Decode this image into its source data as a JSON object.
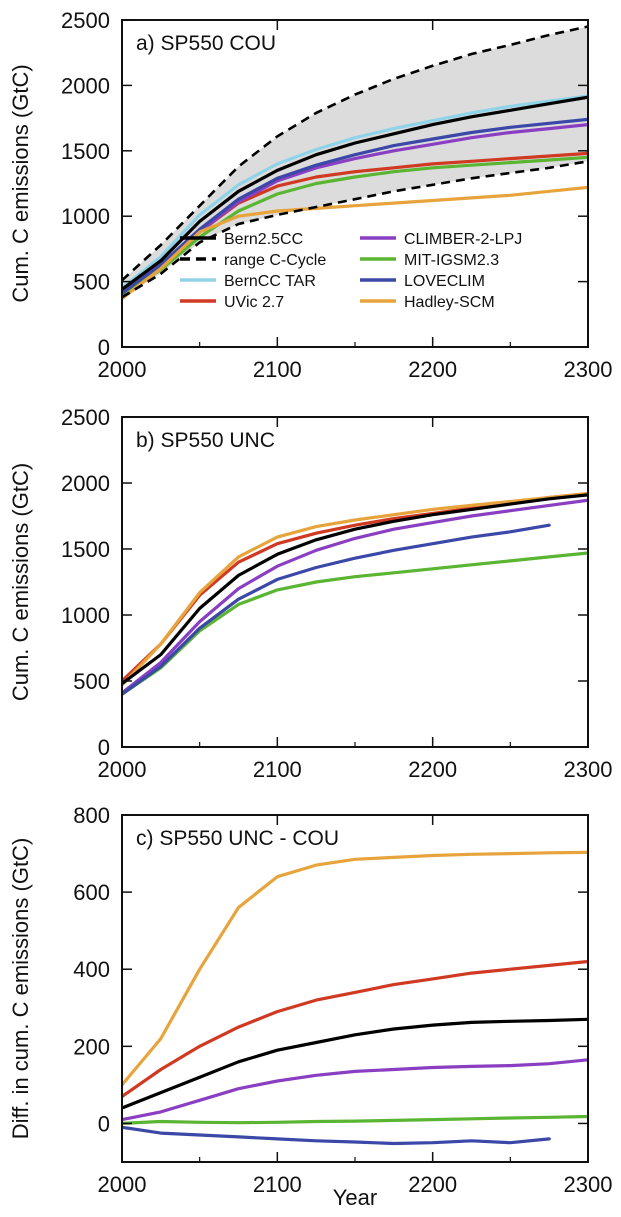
{
  "figure": {
    "xlabel": "Year"
  },
  "legend": [
    {
      "name": "Bern2.5CC",
      "color": "#000000",
      "dash": false
    },
    {
      "name": "range C-Cycle",
      "color": "#000000",
      "dash": true
    },
    {
      "name": "BernCC TAR",
      "color": "#8fd3e8",
      "dash": false
    },
    {
      "name": "UVic 2.7",
      "color": "#d03a22",
      "dash": false
    },
    {
      "name": "CLIMBER-2-LPJ",
      "color": "#8a3fc2",
      "dash": false
    },
    {
      "name": "MIT-IGSM2.3",
      "color": "#5ab532",
      "dash": false
    },
    {
      "name": "LOVECLIM",
      "color": "#3b48a8",
      "dash": false
    },
    {
      "name": "Hadley-SCM",
      "color": "#e8a43c",
      "dash": false
    }
  ],
  "chart_data": [
    {
      "type": "line",
      "title": "a) SP550 COU",
      "ylabel": "Cum. C emissions (GtC)",
      "xlabel": "",
      "xlim": [
        2000,
        2300
      ],
      "ylim": [
        0,
        2500
      ],
      "xticks": [
        2000,
        2100,
        2200,
        2300
      ],
      "yticks": [
        0,
        500,
        1000,
        1500,
        2000,
        2500
      ],
      "grid": false,
      "legend_position": "bottom-right",
      "x": [
        2000,
        2025,
        2050,
        2075,
        2100,
        2125,
        2150,
        2175,
        2200,
        2225,
        2250,
        2275,
        2300
      ],
      "range": {
        "name": "range C-Cycle",
        "upper": [
          510,
          780,
          1080,
          1380,
          1610,
          1790,
          1930,
          2050,
          2150,
          2240,
          2310,
          2385,
          2450
        ],
        "lower": [
          380,
          560,
          800,
          940,
          1010,
          1070,
          1130,
          1190,
          1240,
          1290,
          1330,
          1370,
          1420
        ]
      },
      "series": [
        {
          "name": "Bern2.5CC",
          "values": [
            440,
            660,
            960,
            1190,
            1350,
            1470,
            1560,
            1630,
            1700,
            1760,
            1810,
            1860,
            1910
          ]
        },
        {
          "name": "BernCC TAR",
          "values": [
            450,
            690,
            1010,
            1240,
            1400,
            1510,
            1600,
            1670,
            1730,
            1790,
            1840,
            1880,
            1920
          ]
        },
        {
          "name": "UVic 2.7",
          "values": [
            420,
            610,
            880,
            1100,
            1230,
            1300,
            1340,
            1370,
            1400,
            1420,
            1440,
            1460,
            1480
          ]
        },
        {
          "name": "CLIMBER-2-LPJ",
          "values": [
            400,
            600,
            880,
            1110,
            1270,
            1370,
            1440,
            1500,
            1550,
            1600,
            1640,
            1670,
            1700
          ]
        },
        {
          "name": "MIT-IGSM2.3",
          "values": [
            400,
            590,
            840,
            1040,
            1170,
            1250,
            1300,
            1340,
            1370,
            1390,
            1410,
            1430,
            1450
          ]
        },
        {
          "name": "LOVECLIM",
          "values": [
            410,
            630,
            900,
            1130,
            1290,
            1390,
            1470,
            1540,
            1590,
            1640,
            1680,
            1710,
            1740
          ]
        },
        {
          "name": "Hadley-SCM",
          "values": [
            370,
            600,
            880,
            1000,
            1040,
            1060,
            1080,
            1100,
            1120,
            1140,
            1160,
            1190,
            1220
          ]
        }
      ]
    },
    {
      "type": "line",
      "title": "b) SP550 UNC",
      "ylabel": "Cum. C emissions (GtC)",
      "xlabel": "",
      "xlim": [
        2000,
        2300
      ],
      "ylim": [
        0,
        2500
      ],
      "xticks": [
        2000,
        2100,
        2200,
        2300
      ],
      "yticks": [
        0,
        500,
        1000,
        1500,
        2000,
        2500
      ],
      "grid": false,
      "x": [
        2000,
        2025,
        2050,
        2075,
        2100,
        2125,
        2150,
        2175,
        2200,
        2225,
        2250,
        2275,
        2300
      ],
      "series": [
        {
          "name": "Bern2.5CC",
          "values": [
            480,
            700,
            1050,
            1300,
            1460,
            1570,
            1650,
            1710,
            1760,
            1800,
            1840,
            1880,
            1910
          ]
        },
        {
          "name": "UVic 2.7",
          "values": [
            500,
            780,
            1150,
            1400,
            1540,
            1620,
            1680,
            1730,
            1770,
            1810,
            1850,
            1890,
            1920
          ]
        },
        {
          "name": "CLIMBER-2-LPJ",
          "values": [
            410,
            640,
            950,
            1200,
            1370,
            1490,
            1580,
            1650,
            1700,
            1750,
            1790,
            1830,
            1870
          ]
        },
        {
          "name": "MIT-IGSM2.3",
          "values": [
            400,
            600,
            880,
            1080,
            1190,
            1250,
            1290,
            1320,
            1350,
            1380,
            1410,
            1440,
            1470
          ]
        },
        {
          "name": "LOVECLIM",
          "values": [
            400,
            610,
            900,
            1120,
            1270,
            1360,
            1430,
            1490,
            1540,
            1590,
            1630,
            1680,
            null
          ]
        },
        {
          "name": "Hadley-SCM",
          "values": [
            470,
            780,
            1170,
            1440,
            1590,
            1670,
            1720,
            1760,
            1800,
            1830,
            1860,
            1890,
            1920
          ]
        }
      ]
    },
    {
      "type": "line",
      "title": "c) SP550 UNC - COU",
      "ylabel": "Diff. in cum. C emissions (GtC)",
      "xlabel": "Year",
      "xlim": [
        2000,
        2300
      ],
      "ylim": [
        -100,
        800
      ],
      "xticks": [
        2000,
        2100,
        2200,
        2300
      ],
      "yticks": [
        0,
        200,
        400,
        600,
        800
      ],
      "grid": false,
      "x": [
        2000,
        2025,
        2050,
        2075,
        2100,
        2125,
        2150,
        2175,
        2200,
        2225,
        2250,
        2275,
        2300
      ],
      "series": [
        {
          "name": "Bern2.5CC",
          "values": [
            40,
            80,
            120,
            160,
            190,
            210,
            230,
            245,
            255,
            262,
            265,
            267,
            270
          ]
        },
        {
          "name": "UVic 2.7",
          "values": [
            70,
            140,
            200,
            250,
            290,
            320,
            340,
            360,
            375,
            390,
            400,
            410,
            420
          ]
        },
        {
          "name": "CLIMBER-2-LPJ",
          "values": [
            10,
            30,
            60,
            90,
            110,
            125,
            135,
            140,
            145,
            148,
            150,
            155,
            165
          ]
        },
        {
          "name": "MIT-IGSM2.3",
          "values": [
            0,
            5,
            3,
            2,
            3,
            5,
            6,
            8,
            10,
            12,
            14,
            16,
            18
          ]
        },
        {
          "name": "LOVECLIM",
          "values": [
            -10,
            -25,
            -30,
            -35,
            -40,
            -45,
            -48,
            -52,
            -50,
            -45,
            -50,
            -40,
            null
          ]
        },
        {
          "name": "Hadley-SCM",
          "values": [
            100,
            220,
            400,
            560,
            640,
            670,
            685,
            690,
            695,
            698,
            700,
            702,
            703
          ]
        }
      ]
    }
  ]
}
